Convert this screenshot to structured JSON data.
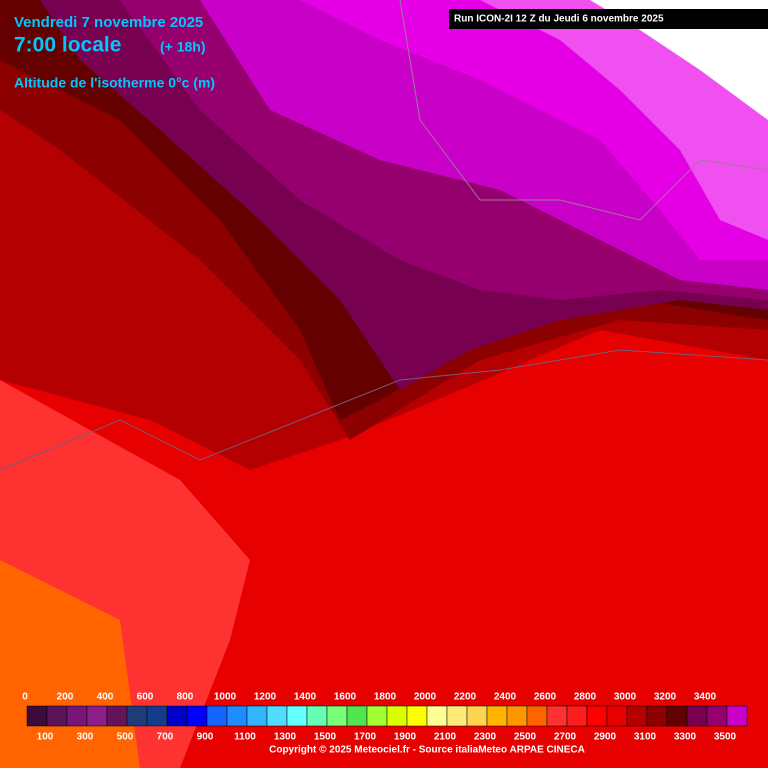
{
  "header": {
    "date": "Vendredi 7 novembre 2025",
    "time": "7:00 locale",
    "lead": "(+ 18h)",
    "parameter": "Altitude de l'isotherme 0°c (m)",
    "run": "Run ICON-2I 12 Z du Jeudi 6 novembre 2025"
  },
  "legend": {
    "colors": [
      "#3c0a3c",
      "#5a145a",
      "#78147a",
      "#8c1e8c",
      "#64145a",
      "#1e3c78",
      "#143c8c",
      "#0000c8",
      "#0000ff",
      "#1464ff",
      "#1e8cff",
      "#32b4ff",
      "#50dcff",
      "#64ffff",
      "#64ffb4",
      "#78ff78",
      "#50e650",
      "#a0ff32",
      "#dcff00",
      "#ffff00",
      "#ffff96",
      "#ffeb78",
      "#ffd250",
      "#ffb400",
      "#ff9600",
      "#ff6400",
      "#ff3232",
      "#ff1e1e",
      "#ff0000",
      "#e60000",
      "#b40000",
      "#8c0000",
      "#640000",
      "#780050",
      "#96006e",
      "#c800c8"
    ],
    "top_labels": [
      0,
      200,
      400,
      600,
      800,
      1000,
      1200,
      1400,
      1600,
      1800,
      2000,
      2200,
      2400,
      2600,
      2800,
      3000,
      3200,
      3400
    ],
    "bottom_labels": [
      100,
      300,
      500,
      700,
      900,
      1100,
      1300,
      1500,
      1700,
      1900,
      2100,
      2300,
      2500,
      2700,
      2900,
      3100,
      3300,
      3500
    ]
  },
  "footer": {
    "copyright": "Copyright © 2025 Meteociel.fr - Source italiaMeteo ARPAE CINECA"
  }
}
